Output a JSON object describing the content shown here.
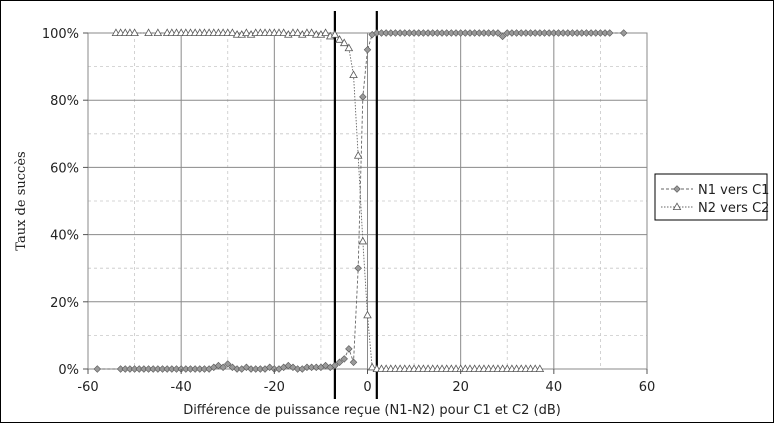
{
  "chart_data": {
    "type": "line",
    "title": "",
    "xlabel": "Différence de puissance reçue (N1-N2) pour C1 et C2 (dB)",
    "ylabel": "Taux de succès",
    "xlim": [
      -60,
      60
    ],
    "ylim": [
      0,
      1
    ],
    "x_ticks": [
      "-60",
      "-40",
      "-20",
      "0",
      "20",
      "40",
      "60"
    ],
    "y_ticks": [
      "0%",
      "20%",
      "40%",
      "60%",
      "80%",
      "100%"
    ],
    "grid": "major and minor horizontal, major vertical",
    "legend_position": "right",
    "vertical_lines": [
      -7,
      2
    ],
    "series": [
      {
        "name": "N1 vers C1",
        "marker": "diamond",
        "points": [
          [
            -58,
            0
          ],
          [
            -53,
            0
          ],
          [
            -52,
            0
          ],
          [
            -51,
            0
          ],
          [
            -50,
            0
          ],
          [
            -49,
            0
          ],
          [
            -48,
            0
          ],
          [
            -47,
            0
          ],
          [
            -46,
            0
          ],
          [
            -45,
            0
          ],
          [
            -44,
            0
          ],
          [
            -43,
            0
          ],
          [
            -42,
            0
          ],
          [
            -41,
            0
          ],
          [
            -40,
            0
          ],
          [
            -39,
            0
          ],
          [
            -38,
            0
          ],
          [
            -37,
            0
          ],
          [
            -36,
            0
          ],
          [
            -35,
            0
          ],
          [
            -34,
            0
          ],
          [
            -33,
            0.005
          ],
          [
            -32,
            0.01
          ],
          [
            -31,
            0.005
          ],
          [
            -30,
            0.015
          ],
          [
            -29,
            0.005
          ],
          [
            -28,
            0
          ],
          [
            -27,
            0
          ],
          [
            -26,
            0.005
          ],
          [
            -25,
            0
          ],
          [
            -24,
            0
          ],
          [
            -23,
            0
          ],
          [
            -22,
            0
          ],
          [
            -21,
            0.005
          ],
          [
            -20,
            0
          ],
          [
            -19,
            0
          ],
          [
            -18,
            0.005
          ],
          [
            -17,
            0.01
          ],
          [
            -16,
            0.005
          ],
          [
            -15,
            0
          ],
          [
            -14,
            0
          ],
          [
            -13,
            0.005
          ],
          [
            -12,
            0.005
          ],
          [
            -11,
            0.005
          ],
          [
            -10,
            0.005
          ],
          [
            -9,
            0.01
          ],
          [
            -8,
            0.005
          ],
          [
            -7,
            0.01
          ],
          [
            -6,
            0.02
          ],
          [
            -5,
            0.03
          ],
          [
            -4,
            0.06
          ],
          [
            -3,
            0.02
          ],
          [
            -2,
            0.3
          ],
          [
            -1,
            0.81
          ],
          [
            0,
            0.95
          ],
          [
            1,
            0.995
          ],
          [
            2,
            1
          ],
          [
            3,
            1
          ],
          [
            4,
            1
          ],
          [
            5,
            1
          ],
          [
            6,
            1
          ],
          [
            7,
            1
          ],
          [
            8,
            1
          ],
          [
            9,
            1
          ],
          [
            10,
            1
          ],
          [
            11,
            1
          ],
          [
            12,
            1
          ],
          [
            13,
            1
          ],
          [
            14,
            1
          ],
          [
            15,
            1
          ],
          [
            16,
            1
          ],
          [
            17,
            1
          ],
          [
            18,
            1
          ],
          [
            19,
            1
          ],
          [
            20,
            1
          ],
          [
            21,
            1
          ],
          [
            22,
            1
          ],
          [
            23,
            1
          ],
          [
            24,
            1
          ],
          [
            25,
            1
          ],
          [
            26,
            1
          ],
          [
            27,
            1
          ],
          [
            28,
            1
          ],
          [
            29,
            0.99
          ],
          [
            30,
            1
          ],
          [
            31,
            1
          ],
          [
            32,
            1
          ],
          [
            33,
            1
          ],
          [
            34,
            1
          ],
          [
            35,
            1
          ],
          [
            36,
            1
          ],
          [
            37,
            1
          ],
          [
            38,
            1
          ],
          [
            39,
            1
          ],
          [
            40,
            1
          ],
          [
            41,
            1
          ],
          [
            42,
            1
          ],
          [
            43,
            1
          ],
          [
            44,
            1
          ],
          [
            45,
            1
          ],
          [
            46,
            1
          ],
          [
            47,
            1
          ],
          [
            48,
            1
          ],
          [
            49,
            1
          ],
          [
            50,
            1
          ],
          [
            51,
            1
          ],
          [
            52,
            1
          ],
          [
            55,
            1
          ]
        ]
      },
      {
        "name": "N2 vers C2",
        "marker": "triangle",
        "points": [
          [
            -54,
            1
          ],
          [
            -53,
            1
          ],
          [
            -52,
            1
          ],
          [
            -51,
            1
          ],
          [
            -50,
            1
          ],
          [
            -47,
            1
          ],
          [
            -45,
            1
          ],
          [
            -43,
            1
          ],
          [
            -42,
            1
          ],
          [
            -41,
            1
          ],
          [
            -40,
            1
          ],
          [
            -39,
            1
          ],
          [
            -38,
            1
          ],
          [
            -37,
            1
          ],
          [
            -36,
            1
          ],
          [
            -35,
            1
          ],
          [
            -34,
            1
          ],
          [
            -33,
            1
          ],
          [
            -32,
            1
          ],
          [
            -31,
            1
          ],
          [
            -30,
            1
          ],
          [
            -29,
            1
          ],
          [
            -28,
            0.995
          ],
          [
            -27,
            0.995
          ],
          [
            -26,
            1
          ],
          [
            -25,
            0.995
          ],
          [
            -24,
            1
          ],
          [
            -23,
            1
          ],
          [
            -22,
            1
          ],
          [
            -21,
            1
          ],
          [
            -20,
            1
          ],
          [
            -19,
            1
          ],
          [
            -18,
            1
          ],
          [
            -17,
            0.995
          ],
          [
            -16,
            1
          ],
          [
            -15,
            1
          ],
          [
            -14,
            0.995
          ],
          [
            -13,
            1
          ],
          [
            -12,
            1
          ],
          [
            -11,
            0.995
          ],
          [
            -10,
            0.995
          ],
          [
            -9,
            1
          ],
          [
            -8,
            0.99
          ],
          [
            -7,
            0.995
          ],
          [
            -6,
            0.98
          ],
          [
            -5,
            0.97
          ],
          [
            -4,
            0.955
          ],
          [
            -3,
            0.875
          ],
          [
            -2,
            0.635
          ],
          [
            -1,
            0.38
          ],
          [
            0,
            0.16
          ],
          [
            1,
            0.005
          ],
          [
            2,
            0
          ],
          [
            3,
            0
          ],
          [
            4,
            0
          ],
          [
            5,
            0
          ],
          [
            6,
            0
          ],
          [
            7,
            0
          ],
          [
            8,
            0
          ],
          [
            9,
            0
          ],
          [
            10,
            0
          ],
          [
            11,
            0
          ],
          [
            12,
            0
          ],
          [
            13,
            0
          ],
          [
            14,
            0
          ],
          [
            15,
            0
          ],
          [
            16,
            0
          ],
          [
            17,
            0
          ],
          [
            18,
            0
          ],
          [
            19,
            0
          ],
          [
            20,
            0
          ],
          [
            21,
            0
          ],
          [
            22,
            0
          ],
          [
            23,
            0
          ],
          [
            24,
            0
          ],
          [
            25,
            0
          ],
          [
            26,
            0
          ],
          [
            27,
            0
          ],
          [
            28,
            0
          ],
          [
            29,
            0
          ],
          [
            30,
            0
          ],
          [
            31,
            0
          ],
          [
            32,
            0
          ],
          [
            33,
            0
          ],
          [
            34,
            0
          ],
          [
            35,
            0
          ],
          [
            36,
            0
          ],
          [
            37,
            0
          ]
        ]
      }
    ]
  }
}
